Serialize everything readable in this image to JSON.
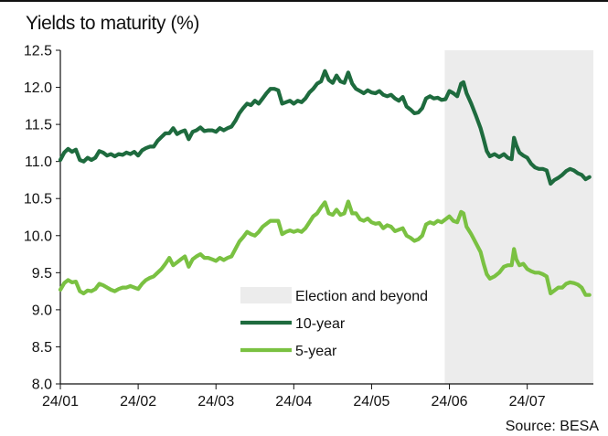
{
  "title": "Yields to maturity (%)",
  "source": "Source: BESA",
  "chart_data": {
    "type": "line",
    "title": "Yields to maturity (%)",
    "xlabel": "",
    "ylabel": "",
    "ylim": [
      8.0,
      12.5
    ],
    "yticks": [
      "8.0",
      "8.5",
      "9.0",
      "9.5",
      "10.0",
      "10.5",
      "11.0",
      "11.5",
      "12.0",
      "12.5"
    ],
    "x_tick_labels": [
      "24/01",
      "24/02",
      "24/03",
      "24/04",
      "24/05",
      "24/06",
      "24/07"
    ],
    "x_range_months": [
      1.0,
      7.85
    ],
    "grid": false,
    "legend_position": "center-right",
    "shaded_region": {
      "label": "Election and beyond",
      "x_start": 5.94,
      "x_end": 7.85,
      "color": "#ececec"
    },
    "series": [
      {
        "name": "10-year",
        "color": "#1e6b3e",
        "points": [
          [
            1.0,
            11.02
          ],
          [
            1.05,
            11.12
          ],
          [
            1.1,
            11.17
          ],
          [
            1.15,
            11.13
          ],
          [
            1.2,
            11.16
          ],
          [
            1.25,
            11.02
          ],
          [
            1.3,
            11.0
          ],
          [
            1.35,
            11.05
          ],
          [
            1.4,
            11.02
          ],
          [
            1.45,
            11.05
          ],
          [
            1.5,
            11.14
          ],
          [
            1.55,
            11.12
          ],
          [
            1.6,
            11.08
          ],
          [
            1.65,
            11.1
          ],
          [
            1.7,
            11.07
          ],
          [
            1.75,
            11.1
          ],
          [
            1.8,
            11.09
          ],
          [
            1.85,
            11.12
          ],
          [
            1.9,
            11.1
          ],
          [
            1.95,
            11.13
          ],
          [
            2.0,
            11.08
          ],
          [
            2.05,
            11.15
          ],
          [
            2.1,
            11.18
          ],
          [
            2.15,
            11.2
          ],
          [
            2.2,
            11.2
          ],
          [
            2.25,
            11.28
          ],
          [
            2.3,
            11.33
          ],
          [
            2.35,
            11.38
          ],
          [
            2.4,
            11.38
          ],
          [
            2.45,
            11.45
          ],
          [
            2.5,
            11.37
          ],
          [
            2.55,
            11.4
          ],
          [
            2.6,
            11.42
          ],
          [
            2.65,
            11.3
          ],
          [
            2.7,
            11.4
          ],
          [
            2.75,
            11.42
          ],
          [
            2.8,
            11.46
          ],
          [
            2.85,
            11.41
          ],
          [
            2.9,
            11.42
          ],
          [
            2.95,
            11.42
          ],
          [
            3.0,
            11.4
          ],
          [
            3.05,
            11.45
          ],
          [
            3.1,
            11.42
          ],
          [
            3.15,
            11.45
          ],
          [
            3.2,
            11.47
          ],
          [
            3.25,
            11.55
          ],
          [
            3.3,
            11.65
          ],
          [
            3.35,
            11.72
          ],
          [
            3.4,
            11.78
          ],
          [
            3.45,
            11.76
          ],
          [
            3.5,
            11.82
          ],
          [
            3.55,
            11.78
          ],
          [
            3.6,
            11.85
          ],
          [
            3.65,
            11.92
          ],
          [
            3.7,
            11.98
          ],
          [
            3.75,
            11.98
          ],
          [
            3.8,
            11.96
          ],
          [
            3.85,
            11.78
          ],
          [
            3.9,
            11.8
          ],
          [
            3.95,
            11.82
          ],
          [
            4.0,
            11.78
          ],
          [
            4.05,
            11.82
          ],
          [
            4.1,
            11.8
          ],
          [
            4.15,
            11.85
          ],
          [
            4.2,
            11.93
          ],
          [
            4.25,
            11.98
          ],
          [
            4.3,
            12.05
          ],
          [
            4.35,
            12.08
          ],
          [
            4.4,
            12.22
          ],
          [
            4.45,
            12.1
          ],
          [
            4.5,
            12.06
          ],
          [
            4.55,
            12.16
          ],
          [
            4.6,
            12.08
          ],
          [
            4.65,
            12.06
          ],
          [
            4.7,
            12.2
          ],
          [
            4.75,
            12.05
          ],
          [
            4.8,
            11.98
          ],
          [
            4.85,
            11.95
          ],
          [
            4.9,
            11.92
          ],
          [
            4.95,
            11.96
          ],
          [
            5.0,
            11.93
          ],
          [
            5.05,
            11.92
          ],
          [
            5.1,
            11.95
          ],
          [
            5.15,
            11.9
          ],
          [
            5.2,
            11.88
          ],
          [
            5.25,
            11.9
          ],
          [
            5.3,
            11.85
          ],
          [
            5.35,
            11.82
          ],
          [
            5.4,
            11.87
          ],
          [
            5.45,
            11.74
          ],
          [
            5.5,
            11.7
          ],
          [
            5.55,
            11.65
          ],
          [
            5.6,
            11.66
          ],
          [
            5.65,
            11.72
          ],
          [
            5.7,
            11.85
          ],
          [
            5.75,
            11.88
          ],
          [
            5.8,
            11.85
          ],
          [
            5.85,
            11.86
          ],
          [
            5.9,
            11.83
          ],
          [
            5.95,
            11.84
          ],
          [
            6.0,
            11.95
          ],
          [
            6.05,
            11.92
          ],
          [
            6.1,
            11.88
          ],
          [
            6.15,
            12.05
          ],
          [
            6.18,
            12.07
          ],
          [
            6.22,
            11.92
          ],
          [
            6.28,
            11.78
          ],
          [
            6.34,
            11.62
          ],
          [
            6.4,
            11.45
          ],
          [
            6.44,
            11.3
          ],
          [
            6.48,
            11.14
          ],
          [
            6.52,
            11.07
          ],
          [
            6.58,
            11.1
          ],
          [
            6.64,
            11.06
          ],
          [
            6.7,
            11.1
          ],
          [
            6.75,
            11.05
          ],
          [
            6.8,
            11.03
          ],
          [
            6.83,
            11.32
          ],
          [
            6.86,
            11.22
          ],
          [
            6.9,
            11.12
          ],
          [
            6.95,
            11.08
          ],
          [
            7.0,
            11.05
          ],
          [
            7.05,
            10.97
          ],
          [
            7.1,
            10.92
          ],
          [
            7.15,
            10.9
          ],
          [
            7.2,
            10.9
          ],
          [
            7.25,
            10.88
          ],
          [
            7.3,
            10.7
          ],
          [
            7.35,
            10.75
          ],
          [
            7.4,
            10.78
          ],
          [
            7.45,
            10.82
          ],
          [
            7.5,
            10.87
          ],
          [
            7.55,
            10.9
          ],
          [
            7.6,
            10.88
          ],
          [
            7.65,
            10.84
          ],
          [
            7.7,
            10.82
          ],
          [
            7.75,
            10.76
          ],
          [
            7.8,
            10.79
          ]
        ]
      },
      {
        "name": "5-year",
        "color": "#7ac142",
        "points": [
          [
            1.0,
            9.27
          ],
          [
            1.05,
            9.36
          ],
          [
            1.1,
            9.4
          ],
          [
            1.15,
            9.37
          ],
          [
            1.2,
            9.38
          ],
          [
            1.25,
            9.25
          ],
          [
            1.3,
            9.22
          ],
          [
            1.35,
            9.26
          ],
          [
            1.4,
            9.25
          ],
          [
            1.45,
            9.28
          ],
          [
            1.5,
            9.35
          ],
          [
            1.55,
            9.33
          ],
          [
            1.6,
            9.3
          ],
          [
            1.65,
            9.27
          ],
          [
            1.7,
            9.25
          ],
          [
            1.75,
            9.28
          ],
          [
            1.8,
            9.3
          ],
          [
            1.85,
            9.3
          ],
          [
            1.9,
            9.32
          ],
          [
            1.95,
            9.3
          ],
          [
            2.0,
            9.28
          ],
          [
            2.05,
            9.35
          ],
          [
            2.1,
            9.4
          ],
          [
            2.15,
            9.43
          ],
          [
            2.2,
            9.45
          ],
          [
            2.25,
            9.5
          ],
          [
            2.3,
            9.55
          ],
          [
            2.35,
            9.62
          ],
          [
            2.4,
            9.7
          ],
          [
            2.45,
            9.6
          ],
          [
            2.5,
            9.64
          ],
          [
            2.55,
            9.68
          ],
          [
            2.6,
            9.72
          ],
          [
            2.65,
            9.58
          ],
          [
            2.7,
            9.68
          ],
          [
            2.75,
            9.72
          ],
          [
            2.8,
            9.75
          ],
          [
            2.85,
            9.7
          ],
          [
            2.9,
            9.7
          ],
          [
            2.95,
            9.68
          ],
          [
            3.0,
            9.66
          ],
          [
            3.05,
            9.7
          ],
          [
            3.1,
            9.67
          ],
          [
            3.15,
            9.7
          ],
          [
            3.2,
            9.72
          ],
          [
            3.25,
            9.82
          ],
          [
            3.3,
            9.92
          ],
          [
            3.35,
            9.98
          ],
          [
            3.4,
            10.05
          ],
          [
            3.45,
            10.02
          ],
          [
            3.5,
            10.0
          ],
          [
            3.55,
            10.05
          ],
          [
            3.6,
            10.12
          ],
          [
            3.65,
            10.16
          ],
          [
            3.7,
            10.2
          ],
          [
            3.75,
            10.2
          ],
          [
            3.8,
            10.2
          ],
          [
            3.85,
            10.02
          ],
          [
            3.9,
            10.05
          ],
          [
            3.95,
            10.07
          ],
          [
            4.0,
            10.05
          ],
          [
            4.05,
            10.07
          ],
          [
            4.1,
            10.05
          ],
          [
            4.15,
            10.1
          ],
          [
            4.2,
            10.18
          ],
          [
            4.25,
            10.26
          ],
          [
            4.3,
            10.3
          ],
          [
            4.35,
            10.38
          ],
          [
            4.4,
            10.45
          ],
          [
            4.45,
            10.3
          ],
          [
            4.5,
            10.28
          ],
          [
            4.55,
            10.35
          ],
          [
            4.6,
            10.28
          ],
          [
            4.65,
            10.3
          ],
          [
            4.7,
            10.46
          ],
          [
            4.75,
            10.3
          ],
          [
            4.8,
            10.3
          ],
          [
            4.85,
            10.22
          ],
          [
            4.9,
            10.2
          ],
          [
            4.95,
            10.23
          ],
          [
            5.0,
            10.18
          ],
          [
            5.05,
            10.16
          ],
          [
            5.1,
            10.17
          ],
          [
            5.15,
            10.1
          ],
          [
            5.2,
            10.14
          ],
          [
            5.25,
            10.12
          ],
          [
            5.3,
            10.06
          ],
          [
            5.35,
            10.08
          ],
          [
            5.4,
            10.1
          ],
          [
            5.45,
            10.0
          ],
          [
            5.5,
            9.97
          ],
          [
            5.55,
            9.93
          ],
          [
            5.6,
            9.95
          ],
          [
            5.65,
            10.0
          ],
          [
            5.7,
            10.15
          ],
          [
            5.75,
            10.18
          ],
          [
            5.8,
            10.16
          ],
          [
            5.85,
            10.2
          ],
          [
            5.9,
            10.18
          ],
          [
            5.95,
            10.22
          ],
          [
            6.0,
            10.26
          ],
          [
            6.05,
            10.2
          ],
          [
            6.1,
            10.18
          ],
          [
            6.15,
            10.32
          ],
          [
            6.18,
            10.3
          ],
          [
            6.22,
            10.12
          ],
          [
            6.28,
            10.02
          ],
          [
            6.34,
            9.9
          ],
          [
            6.4,
            9.78
          ],
          [
            6.44,
            9.62
          ],
          [
            6.48,
            9.48
          ],
          [
            6.52,
            9.42
          ],
          [
            6.58,
            9.45
          ],
          [
            6.64,
            9.5
          ],
          [
            6.7,
            9.58
          ],
          [
            6.75,
            9.6
          ],
          [
            6.8,
            9.6
          ],
          [
            6.83,
            9.82
          ],
          [
            6.86,
            9.68
          ],
          [
            6.9,
            9.6
          ],
          [
            6.95,
            9.62
          ],
          [
            7.0,
            9.55
          ],
          [
            7.05,
            9.52
          ],
          [
            7.1,
            9.5
          ],
          [
            7.15,
            9.5
          ],
          [
            7.2,
            9.48
          ],
          [
            7.25,
            9.45
          ],
          [
            7.3,
            9.22
          ],
          [
            7.35,
            9.26
          ],
          [
            7.4,
            9.3
          ],
          [
            7.45,
            9.3
          ],
          [
            7.5,
            9.35
          ],
          [
            7.55,
            9.37
          ],
          [
            7.6,
            9.36
          ],
          [
            7.65,
            9.34
          ],
          [
            7.7,
            9.3
          ],
          [
            7.75,
            9.2
          ],
          [
            7.8,
            9.2
          ]
        ]
      }
    ]
  }
}
